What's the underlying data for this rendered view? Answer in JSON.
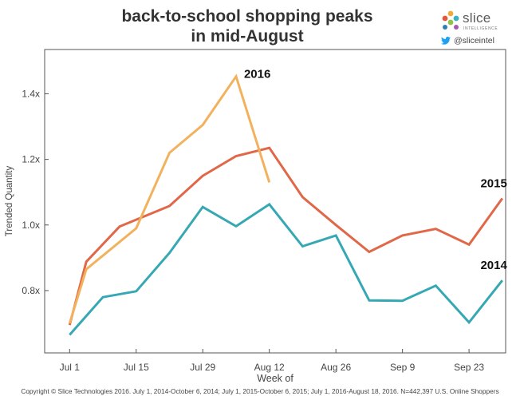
{
  "header": {
    "title_line1": "back-to-school shopping peaks",
    "title_line2": "in mid-August"
  },
  "brand": {
    "name": "slice",
    "subtitle": "INTELLIGENCE",
    "handle": "@sliceintel"
  },
  "chart_data": {
    "type": "line",
    "title": "back-to-school shopping peaks in mid-August",
    "xlabel": "Week of",
    "ylabel": "Trended Quantity",
    "x_ticks": [
      "Jul 1",
      "Jul 15",
      "Jul 29",
      "Aug 12",
      "Aug 26",
      "Sep 9",
      "Sep 23"
    ],
    "x_tick_weeks": [
      0,
      2,
      4,
      6,
      8,
      10,
      12
    ],
    "y_ticks": [
      "0.8x",
      "1.0x",
      "1.2x",
      "1.4x"
    ],
    "y_tick_values": [
      0.8,
      1.0,
      1.2,
      1.4
    ],
    "xlim": [
      -0.75,
      13.1
    ],
    "ylim": [
      0.61,
      1.535
    ],
    "grid": false,
    "series": [
      {
        "name": "2014",
        "color": "#35a8b4",
        "label": "2014",
        "weeks": [
          0,
          1,
          2,
          3,
          4,
          5,
          6,
          7,
          8,
          9,
          10,
          11,
          12,
          13
        ],
        "values": [
          0.665,
          0.78,
          0.798,
          0.915,
          1.055,
          0.996,
          1.063,
          0.935,
          0.968,
          0.77,
          0.769,
          0.815,
          0.703,
          0.831
        ]
      },
      {
        "name": "2015",
        "color": "#e06848",
        "label": "2015",
        "weeks": [
          0,
          0.5,
          1.5,
          3,
          4,
          5,
          6,
          7,
          8,
          9,
          10,
          11,
          12,
          13
        ],
        "values": [
          0.695,
          0.888,
          0.995,
          1.058,
          1.15,
          1.21,
          1.235,
          1.085,
          1.0,
          0.918,
          0.968,
          0.988,
          0.94,
          1.081
        ]
      },
      {
        "name": "2016",
        "color": "#f2b25d",
        "label": "2016",
        "weeks": [
          0,
          0.5,
          2.0,
          3,
          4,
          5,
          6
        ],
        "values": [
          0.7,
          0.865,
          0.99,
          1.22,
          1.305,
          1.453,
          1.13
        ]
      }
    ]
  },
  "footer": {
    "copyright": "Copyright © Slice Technologies 2016. July 1, 2014-October 6, 2014; July 1, 2015-October 6, 2015; July 1, 2016-August 18, 2016. N=442,397 U.S. Online Shoppers"
  }
}
